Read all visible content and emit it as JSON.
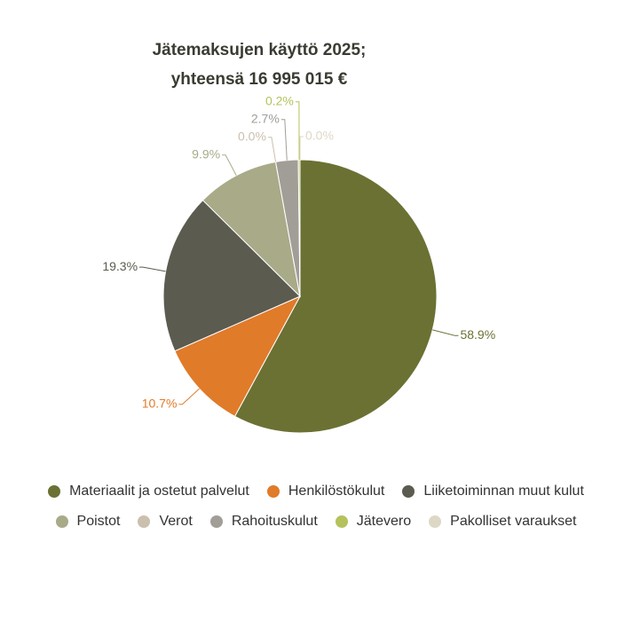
{
  "chart_data": {
    "type": "pie",
    "title_lines": [
      "Jätemaksujen käyttö 2025;",
      "yhteensä 16 995 015 €"
    ],
    "categories": [
      "Materiaalit ja ostetut palvelut",
      "Henkilöstökulut",
      "Liiketoiminnan muut kulut",
      "Poistot",
      "Verot",
      "Rahoituskulut",
      "Jätevero",
      "Pakolliset varaukset"
    ],
    "values": [
      58.9,
      10.7,
      19.3,
      9.9,
      0.0,
      2.7,
      0.2,
      0.0
    ],
    "value_labels": [
      "58.9%",
      "10.7%",
      "19.3%",
      "9.9%",
      "0.0%",
      "2.7%",
      "0.2%",
      "0.0%"
    ],
    "colors": [
      "#6b7133",
      "#e07b2a",
      "#5b5b4f",
      "#a9aa88",
      "#cbbfae",
      "#a19e97",
      "#b5c25c",
      "#ddd8c6"
    ]
  }
}
